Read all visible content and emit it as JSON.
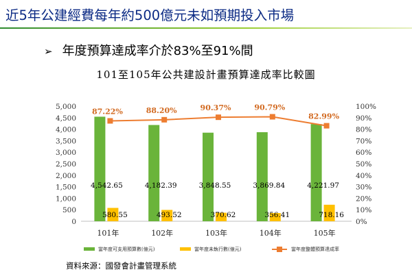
{
  "slide": {
    "title": "近5年公建經費每年約500億元未如預期投入市場",
    "bullet_icon": "➢",
    "bullet": "年度預算達成率介於83%至91%間",
    "source": "資料來源：國發會計畫管理系統"
  },
  "chart_data": {
    "type": "bar",
    "title": "101至105年公共建設計畫預算達成率比較圖",
    "categories": [
      "101年",
      "102年",
      "103年",
      "104年",
      "105年"
    ],
    "series": [
      {
        "name": "當年度可支用預算數(億元)",
        "type": "bar",
        "axis": "left",
        "color": "#6ab43a",
        "values": [
          4542.65,
          4182.39,
          3848.55,
          3869.84,
          4221.97
        ],
        "labels": [
          "4,542.65",
          "4,182.39",
          "3,848.55",
          "3,869.84",
          "4,221.97"
        ]
      },
      {
        "name": "當年度未執行數(億元)",
        "type": "bar",
        "axis": "left",
        "color": "#ffc000",
        "values": [
          580.55,
          493.52,
          370.62,
          356.41,
          718.16
        ],
        "labels": [
          "580.55",
          "493.52",
          "370.62",
          "356.41",
          "718.16"
        ]
      },
      {
        "name": "當年度整體預算達成率",
        "type": "line",
        "axis": "right",
        "color": "#ed7d31",
        "values": [
          87.22,
          88.2,
          90.37,
          90.79,
          82.99
        ],
        "labels": [
          "87.22%",
          "88.20%",
          "90.37%",
          "90.79%",
          "82.99%"
        ]
      }
    ],
    "y_left": {
      "ylim": [
        0,
        5000
      ],
      "ticks": [
        "0",
        "500",
        "1,000",
        "1,500",
        "2,000",
        "2,500",
        "3,000",
        "3,500",
        "4,000",
        "4,500",
        "5,000"
      ]
    },
    "y_right": {
      "ylim": [
        0,
        100
      ],
      "ticks": [
        "0%",
        "10%",
        "20%",
        "30%",
        "40%",
        "50%",
        "60%",
        "70%",
        "80%",
        "90%",
        "100%"
      ]
    },
    "grid": false,
    "legend": "bottom"
  }
}
